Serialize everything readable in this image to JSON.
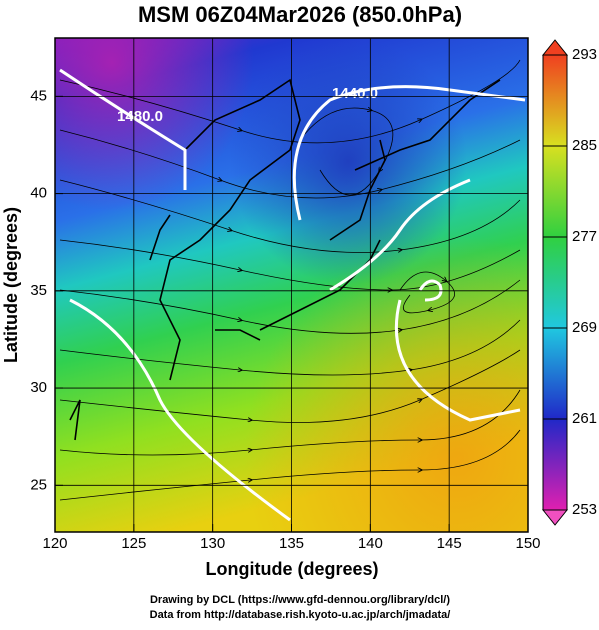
{
  "chart_data": {
    "type": "map",
    "title": "MSM 06Z04Mar2026 (850.0hPa)",
    "xlabel": "Longitude (degrees)",
    "ylabel": "Latitude  (degrees)",
    "xlim": [
      120,
      150
    ],
    "xticks": [
      120,
      125,
      130,
      135,
      140,
      145,
      150
    ],
    "ylim": [
      22.6,
      48
    ],
    "yticks": [
      25,
      30,
      35,
      40,
      45
    ],
    "grid": true,
    "colorbar": {
      "lim": [
        253,
        293
      ],
      "ticks": [
        253,
        261,
        269,
        277,
        285,
        293
      ]
    },
    "contour_labels": [
      "1480.0",
      "1440.0"
    ],
    "footer": [
      "Drawing by DCL (https://www.gfd-dennou.org/library/dcl/)",
      "Data from http://database.rish.kyoto-u.ac.jp/arch/jmadata/"
    ]
  }
}
